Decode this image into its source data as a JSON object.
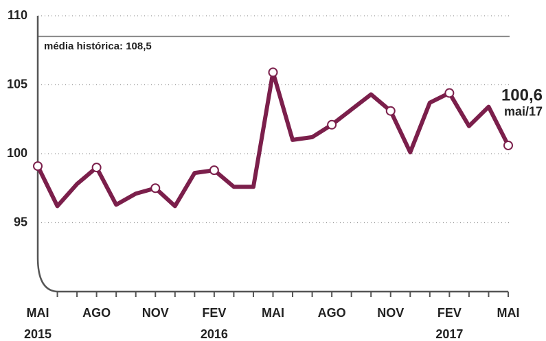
{
  "chart_data": {
    "type": "line",
    "categories": [
      "MAI",
      null,
      null,
      "AGO",
      null,
      null,
      "NOV",
      null,
      null,
      "FEV",
      null,
      null,
      "MAI",
      null,
      null,
      "AGO",
      null,
      null,
      "NOV",
      null,
      null,
      "FEV",
      null,
      null,
      "MAI"
    ],
    "year_labels": [
      "2015",
      null,
      null,
      null,
      null,
      null,
      null,
      null,
      null,
      "2016",
      null,
      null,
      null,
      null,
      null,
      null,
      null,
      null,
      null,
      null,
      null,
      "2017",
      null,
      null,
      null
    ],
    "series": [
      {
        "color": "#7b1f4b",
        "values": [
          99.1,
          96.2,
          97.8,
          99.0,
          96.3,
          97.1,
          97.5,
          96.2,
          98.6,
          98.8,
          97.6,
          97.6,
          105.9,
          101.0,
          101.2,
          102.1,
          103.2,
          104.3,
          103.1,
          100.1,
          103.7,
          104.4,
          102.0,
          103.4,
          100.6
        ],
        "value_labels": [
          null,
          null,
          null,
          null,
          null,
          null,
          null,
          null,
          null,
          null,
          null,
          null,
          null,
          null,
          null,
          null,
          null,
          null,
          null,
          null,
          null,
          null,
          null,
          null,
          "100,6"
        ],
        "markers": [
          0,
          3,
          6,
          9,
          12,
          15,
          18,
          21,
          24
        ]
      }
    ],
    "last_point_note": "mai/17",
    "reference_line": {
      "value": 108.5,
      "label": "média histórica: 108,5",
      "color": "#888"
    },
    "ylim": [
      90,
      110
    ],
    "yticks": [
      95,
      100,
      105,
      110
    ],
    "grid": true
  }
}
